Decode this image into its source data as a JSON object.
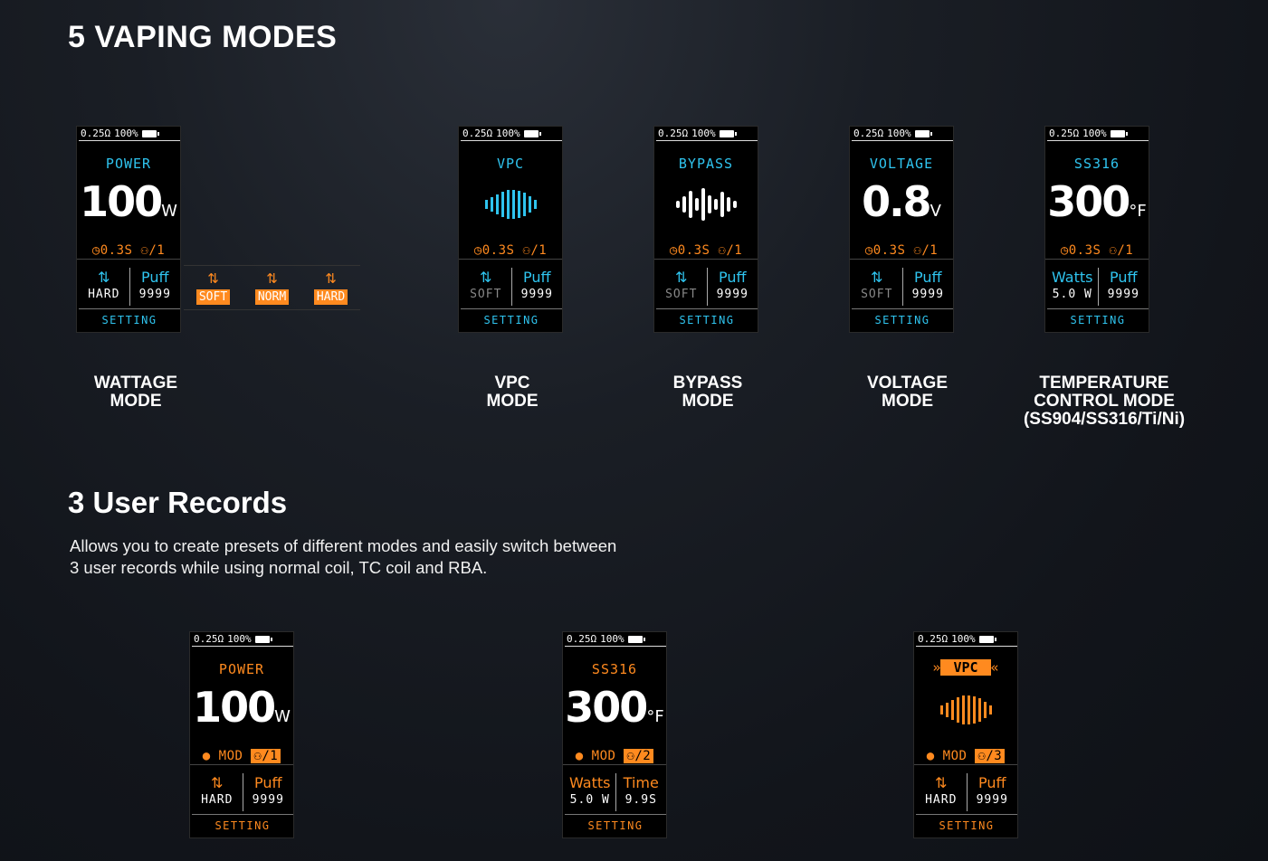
{
  "section1": {
    "title": "5 VAPING MODES"
  },
  "section2": {
    "title": "3 User Records",
    "description_line1": "Allows you to create presets of different modes and easily switch between",
    "description_line2": "3 user records while using normal coil, TC coil and RBA."
  },
  "status": {
    "resistance": "0.25Ω",
    "battery": "100%"
  },
  "modes": [
    {
      "name": "POWER",
      "value": "100",
      "unit": "W",
      "info": "◷0.3S ⚇/1",
      "col1_top": "⇅",
      "col1_bot": "HARD",
      "col2_top": "Puff",
      "col2_bot": "9999",
      "setting": "SETTING",
      "label1": "WATTAGE",
      "label2": "MODE",
      "label3": ""
    },
    {
      "name": "VPC",
      "value": "",
      "unit": "",
      "info": "◷0.3S ⚇/1",
      "col1_top": "⇅",
      "col1_bot": "SOFT",
      "col2_top": "Puff",
      "col2_bot": "9999",
      "setting": "SETTING",
      "label1": "VPC",
      "label2": "MODE",
      "label3": ""
    },
    {
      "name": "BYPASS",
      "value": "",
      "unit": "",
      "info": "◷0.3S ⚇/1",
      "col1_top": "⇅",
      "col1_bot": "SOFT",
      "col2_top": "Puff",
      "col2_bot": "9999",
      "setting": "SETTING",
      "label1": "BYPASS",
      "label2": "MODE",
      "label3": ""
    },
    {
      "name": "VOLTAGE",
      "value": "0.8",
      "unit": "V",
      "info": "◷0.3S ⚇/1",
      "col1_top": "⇅",
      "col1_bot": "SOFT",
      "col2_top": "Puff",
      "col2_bot": "9999",
      "setting": "SETTING",
      "label1": "VOLTAGE",
      "label2": "MODE",
      "label3": ""
    },
    {
      "name": "SS316",
      "value": "300",
      "unit": "°F",
      "info": "◷0.3S ⚇/1",
      "col1_top": "Watts",
      "col1_bot": "5.0 W",
      "col2_top": "Puff",
      "col2_bot": "9999",
      "setting": "SETTING",
      "label1": "TEMPERATURE",
      "label2": "CONTROL MODE",
      "label3": "(SS904/SS316/Ti/Ni)"
    }
  ],
  "strip": [
    {
      "arrow": "⇅",
      "tag": "SOFT"
    },
    {
      "arrow": "⇅",
      "tag": "NORM"
    },
    {
      "arrow": "⇅",
      "tag": "HARD"
    }
  ],
  "records": [
    {
      "name": "POWER",
      "value": "100",
      "unit": "W",
      "mod": "● MOD",
      "user": "⚇/1",
      "col1_top": "⇅",
      "col1_bot": "HARD",
      "col2_top": "Puff",
      "col2_bot": "9999",
      "setting": "SETTING"
    },
    {
      "name": "SS316",
      "value": "300",
      "unit": "°F",
      "mod": "● MOD",
      "user": "⚇/2",
      "col1_top": "Watts",
      "col1_bot": "5.0 W",
      "col2_top": "Time",
      "col2_bot": "9.9S",
      "setting": "SETTING"
    },
    {
      "name": "VPC",
      "value": "",
      "unit": "",
      "mod": "● MOD",
      "user": "⚇/3",
      "col1_top": "⇅",
      "col1_bot": "HARD",
      "col2_top": "Puff",
      "col2_bot": "9999",
      "setting": "SETTING"
    }
  ]
}
